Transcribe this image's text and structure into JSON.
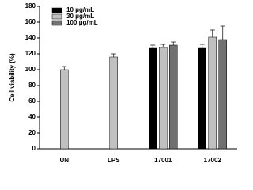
{
  "chart_data": {
    "type": "bar",
    "y_label": "Cell viability (%)",
    "categories": [
      "UN",
      "LPS",
      "17001",
      "17002"
    ],
    "series": [
      {
        "name": "10 μg/mL",
        "color": "#000000",
        "values": [
          null,
          null,
          127,
          127
        ],
        "errors": [
          null,
          null,
          4,
          5
        ]
      },
      {
        "name": "30 μg/mL",
        "color": "#c0c0c0",
        "values": [
          100,
          116,
          128,
          141
        ],
        "errors": [
          4,
          4,
          4,
          9
        ]
      },
      {
        "name": "100 μg/mL",
        "color": "#707070",
        "values": [
          null,
          null,
          131,
          138
        ],
        "errors": [
          null,
          null,
          4,
          17
        ]
      }
    ],
    "ylim": [
      0,
      180
    ],
    "yticks": [
      0,
      20,
      40,
      60,
      80,
      100,
      120,
      140,
      160,
      180
    ],
    "legend": "upper left"
  }
}
